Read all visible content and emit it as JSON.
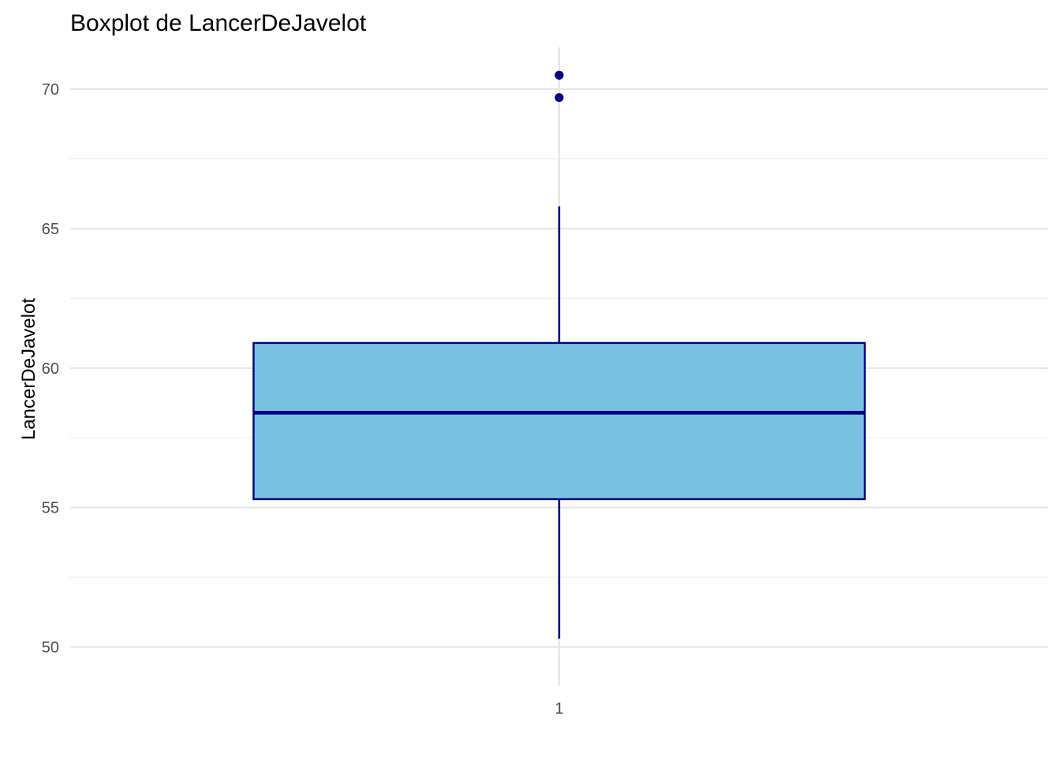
{
  "chart_data": {
    "type": "boxplot",
    "title": "Boxplot de LancerDeJavelot",
    "xlabel": "",
    "ylabel": "LancerDeJavelot",
    "categories": [
      "1"
    ],
    "ylim": [
      48.6,
      71.5
    ],
    "y_ticks": [
      50,
      55,
      60,
      65,
      70
    ],
    "y_tick_labels": [
      "50",
      "55",
      "60",
      "65",
      "70"
    ],
    "grid": true,
    "boxes": [
      {
        "category": "1",
        "whisker_low": 50.3,
        "q1": 55.3,
        "median": 58.4,
        "q3": 60.9,
        "whisker_high": 65.8,
        "outliers": [
          69.7,
          70.5
        ]
      }
    ],
    "colors": {
      "box_fill": "#7AC2E4",
      "box_stroke": "#00007F",
      "outlier": "#00007F",
      "grid_major": "#E5E5E5",
      "grid_minor": "#EBEBEB"
    }
  }
}
